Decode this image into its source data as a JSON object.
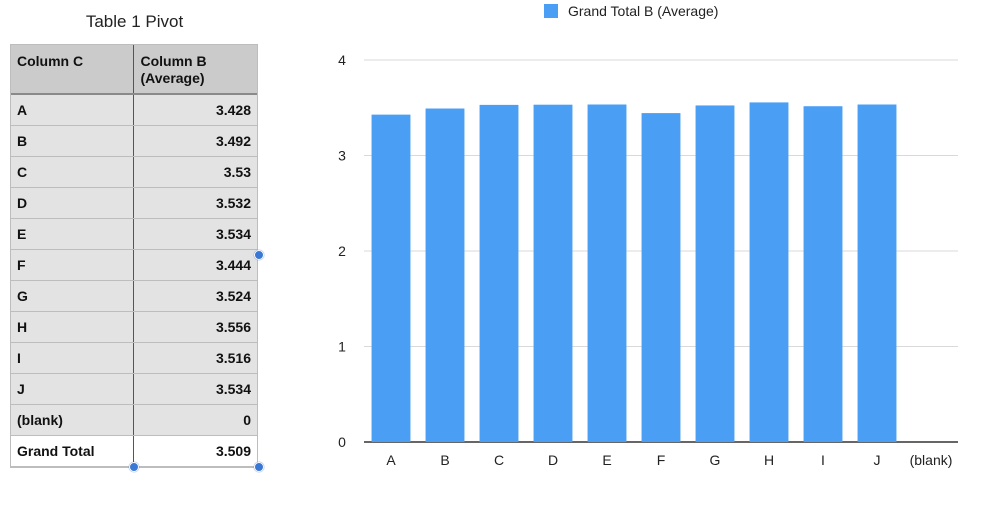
{
  "table": {
    "title": "Table 1 Pivot",
    "headers": [
      "Column C",
      "Column B (Average)"
    ],
    "rows": [
      {
        "label": "A",
        "value": "3.428"
      },
      {
        "label": "B",
        "value": "3.492"
      },
      {
        "label": "C",
        "value": "3.53"
      },
      {
        "label": "D",
        "value": "3.532"
      },
      {
        "label": "E",
        "value": "3.534"
      },
      {
        "label": "F",
        "value": "3.444"
      },
      {
        "label": "G",
        "value": "3.524"
      },
      {
        "label": "H",
        "value": "3.556"
      },
      {
        "label": "I",
        "value": "3.516"
      },
      {
        "label": "J",
        "value": "3.534"
      },
      {
        "label": "(blank)",
        "value": "0"
      }
    ],
    "total": {
      "label": "Grand Total",
      "value": "3.509"
    }
  },
  "chart_data": {
    "type": "bar",
    "categories": [
      "A",
      "B",
      "C",
      "D",
      "E",
      "F",
      "G",
      "H",
      "I",
      "J",
      "(blank)"
    ],
    "series": [
      {
        "name": "Grand Total B (Average)",
        "values": [
          3.428,
          3.492,
          3.53,
          3.532,
          3.534,
          3.444,
          3.524,
          3.556,
          3.516,
          3.534,
          0
        ],
        "color": "#4a9ff5"
      }
    ],
    "yticks": [
      0,
      1,
      2,
      3,
      4
    ],
    "ylim": [
      0,
      4
    ],
    "grid": true,
    "legend": "top",
    "title": "",
    "xlabel": "",
    "ylabel": ""
  },
  "colors": {
    "bar": "#4a9ff5",
    "grid": "#d9d9d9",
    "axis": "#333333",
    "handle": "#3a78d6"
  }
}
